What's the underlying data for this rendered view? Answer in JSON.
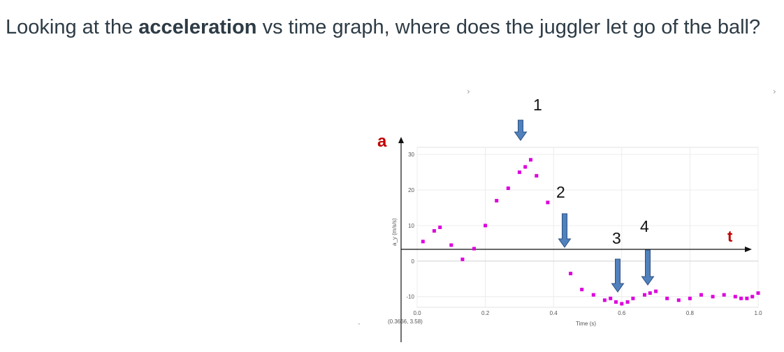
{
  "question": {
    "prefix": "Looking at the ",
    "emphasis": "acceleration",
    "suffix": " vs time graph, where does the juggler let go of the ball?"
  },
  "figure": {
    "a_label": "a",
    "t_label": "t",
    "y_axis_label": "a_y (m/s/s)",
    "x_axis_label": "Time (s)",
    "readout": "(0.3666, 3.58)",
    "arrow_color": "#4f81bd",
    "marker_color": "#dd00dd",
    "annotations": [
      {
        "label": "1",
        "t": 0.33
      },
      {
        "label": "2",
        "t": 0.45
      },
      {
        "label": "3",
        "t": 0.61
      },
      {
        "label": "4",
        "t": 0.68
      }
    ]
  },
  "chart_data": {
    "type": "scatter",
    "xlabel": "Time (s)",
    "ylabel": "a_y (m/s/s)",
    "xlim": [
      0.0,
      1.0
    ],
    "ylim": [
      -13,
      32
    ],
    "x_ticks": [
      "0.0",
      "0.2",
      "0.4",
      "0.6",
      "0.8",
      "1.0"
    ],
    "y_ticks": [
      "30",
      "20",
      "10",
      "0",
      "-10"
    ],
    "grid": true,
    "series": [
      {
        "x": [
          0.017,
          0.05,
          0.067,
          0.1,
          0.133,
          0.167,
          0.2,
          0.233,
          0.267,
          0.3,
          0.317,
          0.333,
          0.35,
          0.383,
          0.45,
          0.483,
          0.517,
          0.55,
          0.567,
          0.583,
          0.6,
          0.617,
          0.633,
          0.667,
          0.683,
          0.7,
          0.733,
          0.767,
          0.8,
          0.833,
          0.867,
          0.9,
          0.933,
          0.95,
          0.967,
          0.983,
          1.0
        ],
        "y": [
          5.5,
          8.5,
          9.5,
          4.5,
          0.5,
          3.5,
          10.0,
          17.0,
          20.5,
          25.0,
          26.5,
          28.5,
          24.0,
          16.5,
          -3.5,
          -8.0,
          -9.5,
          -11.0,
          -10.5,
          -11.5,
          -12.0,
          -11.5,
          -10.5,
          -9.5,
          -9.0,
          -8.5,
          -10.5,
          -11.0,
          -10.5,
          -9.5,
          -10.0,
          -9.5,
          -10.0,
          -10.5,
          -10.5,
          -10.0,
          -9.0
        ]
      }
    ]
  }
}
